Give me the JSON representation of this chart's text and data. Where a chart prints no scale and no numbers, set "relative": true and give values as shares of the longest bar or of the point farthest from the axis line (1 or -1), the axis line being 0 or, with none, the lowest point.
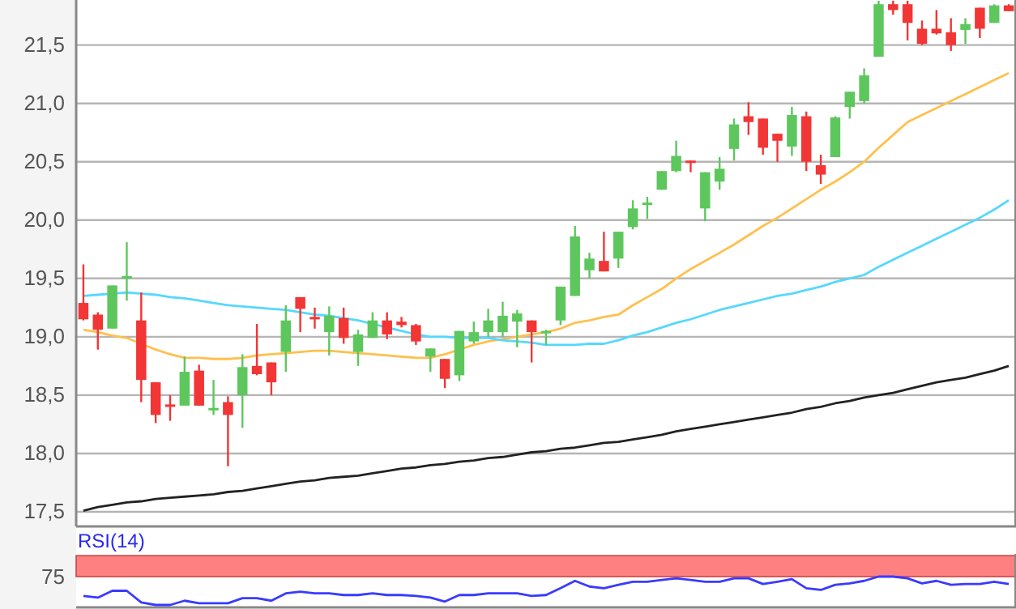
{
  "chart_data": [
    {
      "type": "candlestick",
      "categories": [
        null,
        null,
        null,
        null,
        null,
        null,
        null,
        null,
        null,
        null,
        null,
        null,
        null,
        null,
        null,
        null,
        null,
        null,
        null,
        null,
        null,
        null,
        null,
        null,
        null,
        null,
        null,
        null,
        null,
        null,
        null,
        null,
        null,
        null,
        null,
        null,
        null,
        null,
        null,
        null,
        null,
        null,
        null,
        null,
        null,
        null,
        null,
        null,
        null,
        null,
        null,
        null,
        null,
        null,
        null,
        null,
        null,
        null,
        null,
        null,
        null,
        null,
        null,
        null,
        null
      ],
      "ohlc": [
        [
          19.29,
          19.62,
          19.14,
          19.15
        ],
        [
          19.19,
          19.21,
          18.89,
          19.06
        ],
        [
          19.07,
          19.44,
          19.07,
          19.44
        ],
        [
          19.5,
          19.81,
          19.31,
          19.52
        ],
        [
          19.14,
          19.38,
          18.44,
          18.63
        ],
        [
          18.61,
          18.61,
          18.26,
          18.33
        ],
        [
          18.42,
          18.5,
          18.28,
          18.4
        ],
        [
          18.41,
          18.83,
          18.41,
          18.7
        ],
        [
          18.71,
          18.76,
          18.41,
          18.41
        ],
        [
          18.38,
          18.63,
          18.33,
          18.39
        ],
        [
          18.44,
          18.49,
          17.89,
          18.33
        ],
        [
          18.5,
          18.85,
          18.22,
          18.74
        ],
        [
          18.75,
          19.11,
          18.67,
          18.68
        ],
        [
          18.78,
          18.78,
          18.5,
          18.61
        ],
        [
          18.87,
          19.27,
          18.7,
          19.14
        ],
        [
          19.34,
          19.34,
          19.04,
          19.24
        ],
        [
          19.17,
          19.25,
          19.07,
          19.16
        ],
        [
          19.04,
          19.26,
          18.84,
          19.18
        ],
        [
          19.16,
          19.25,
          18.94,
          18.99
        ],
        [
          18.87,
          19.06,
          18.75,
          19.02
        ],
        [
          18.99,
          19.21,
          18.99,
          19.14
        ],
        [
          19.14,
          19.21,
          18.98,
          19.02
        ],
        [
          19.13,
          19.17,
          19.08,
          19.1
        ],
        [
          19.1,
          19.11,
          18.93,
          18.96
        ],
        [
          18.83,
          18.9,
          18.7,
          18.9
        ],
        [
          18.81,
          18.81,
          18.56,
          18.64
        ],
        [
          18.67,
          19.05,
          18.62,
          19.05
        ],
        [
          18.96,
          19.13,
          18.94,
          19.04
        ],
        [
          19.04,
          19.24,
          19.0,
          19.14
        ],
        [
          19.04,
          19.3,
          19.0,
          19.18
        ],
        [
          19.13,
          19.23,
          18.91,
          19.2
        ],
        [
          19.14,
          19.14,
          18.78,
          19.04
        ],
        [
          19.04,
          19.06,
          18.93,
          19.05
        ],
        [
          19.14,
          19.43,
          19.1,
          19.43
        ],
        [
          19.35,
          19.95,
          19.35,
          19.86
        ],
        [
          19.57,
          19.72,
          19.5,
          19.67
        ],
        [
          19.65,
          19.9,
          19.56,
          19.56
        ],
        [
          19.67,
          19.9,
          19.59,
          19.9
        ],
        [
          19.94,
          20.17,
          19.92,
          20.1
        ],
        [
          20.14,
          20.2,
          20.01,
          20.15
        ],
        [
          20.26,
          20.42,
          20.26,
          20.42
        ],
        [
          20.42,
          20.68,
          20.41,
          20.55
        ],
        [
          20.51,
          20.51,
          20.41,
          20.5
        ],
        [
          20.1,
          20.41,
          19.99,
          20.41
        ],
        [
          20.33,
          20.54,
          20.26,
          20.44
        ],
        [
          20.61,
          20.87,
          20.51,
          20.82
        ],
        [
          20.89,
          21.01,
          20.73,
          20.84
        ],
        [
          20.87,
          20.87,
          20.56,
          20.62
        ],
        [
          20.74,
          20.74,
          20.5,
          20.68
        ],
        [
          20.63,
          20.97,
          20.55,
          20.9
        ],
        [
          20.89,
          20.93,
          20.42,
          20.5
        ],
        [
          20.47,
          20.56,
          20.31,
          20.39
        ],
        [
          20.54,
          20.89,
          20.54,
          20.88
        ],
        [
          20.97,
          21.1,
          20.87,
          21.1
        ],
        [
          21.02,
          21.3,
          21.0,
          21.24
        ],
        [
          21.4,
          21.88,
          21.4,
          21.85
        ],
        [
          21.85,
          21.88,
          21.76,
          21.8
        ],
        [
          21.85,
          21.88,
          21.54,
          21.69
        ],
        [
          21.64,
          21.71,
          21.5,
          21.51
        ],
        [
          21.64,
          21.8,
          21.59,
          21.6
        ],
        [
          21.61,
          21.73,
          21.45,
          21.5
        ],
        [
          21.63,
          21.73,
          21.51,
          21.68
        ],
        [
          21.82,
          21.82,
          21.56,
          21.64
        ],
        [
          21.69,
          21.85,
          21.69,
          21.84
        ],
        [
          21.84,
          21.85,
          21.79,
          21.79
        ]
      ],
      "colors": [
        "#f23535",
        "#f23535",
        "#5dc75d",
        "#5dc75d",
        "#f23535",
        "#f23535",
        "#f23535",
        "#5dc75d",
        "#f23535",
        "#5dc75d",
        "#f23535",
        "#5dc75d",
        "#f23535",
        "#f23535",
        "#5dc75d",
        "#f23535",
        "#f23535",
        "#5dc75d",
        "#f23535",
        "#5dc75d",
        "#5dc75d",
        "#f23535",
        "#f23535",
        "#f23535",
        "#5dc75d",
        "#f23535",
        "#5dc75d",
        "#5dc75d",
        "#5dc75d",
        "#5dc75d",
        "#5dc75d",
        "#f23535",
        "#5dc75d",
        "#5dc75d",
        "#5dc75d",
        "#5dc75d",
        "#f23535",
        "#5dc75d",
        "#5dc75d",
        "#5dc75d",
        "#5dc75d",
        "#5dc75d",
        "#f23535",
        "#5dc75d",
        "#5dc75d",
        "#5dc75d",
        "#f23535",
        "#f23535",
        "#f23535",
        "#5dc75d",
        "#f23535",
        "#f23535",
        "#5dc75d",
        "#5dc75d",
        "#5dc75d",
        "#5dc75d",
        "#f23535",
        "#f23535",
        "#f23535",
        "#f23535",
        "#f23535",
        "#5dc75d",
        "#f23535",
        "#5dc75d",
        "#f23535"
      ],
      "series": [
        {
          "type": "line",
          "color": "#ffc04d",
          "values": [
            19.06,
            19.04,
            19.01,
            18.99,
            18.94,
            18.89,
            18.85,
            18.82,
            18.82,
            18.81,
            18.81,
            18.82,
            18.84,
            18.85,
            18.86,
            18.87,
            18.88,
            18.88,
            18.87,
            18.86,
            18.85,
            18.84,
            18.83,
            18.82,
            18.82,
            18.85,
            18.89,
            18.93,
            18.96,
            18.98,
            19.0,
            19.02,
            19.04,
            19.07,
            19.12,
            19.14,
            19.17,
            19.19,
            19.27,
            19.34,
            19.41,
            19.5,
            19.58,
            19.65,
            19.72,
            19.79,
            19.87,
            19.95,
            20.02,
            20.1,
            20.18,
            20.26,
            20.33,
            20.41,
            20.5,
            20.62,
            20.73,
            20.84,
            20.9,
            20.96,
            21.02,
            21.08,
            21.14,
            21.2,
            21.26
          ]
        },
        {
          "type": "line",
          "color": "#55d8ff",
          "values": [
            19.35,
            19.36,
            19.37,
            19.38,
            19.37,
            19.36,
            19.34,
            19.33,
            19.31,
            19.29,
            19.27,
            19.26,
            19.25,
            19.24,
            19.23,
            19.21,
            19.19,
            19.18,
            19.16,
            19.14,
            19.11,
            19.08,
            19.05,
            19.02,
            19.0,
            19.0,
            18.99,
            18.99,
            18.99,
            18.97,
            18.96,
            18.95,
            18.93,
            18.93,
            18.93,
            18.94,
            18.94,
            18.97,
            19.01,
            19.04,
            19.08,
            19.12,
            19.15,
            19.19,
            19.23,
            19.26,
            19.29,
            19.32,
            19.35,
            19.37,
            19.4,
            19.43,
            19.47,
            19.5,
            19.53,
            19.6,
            19.66,
            19.72,
            19.78,
            19.84,
            19.9,
            19.96,
            20.02,
            20.09,
            20.17
          ]
        },
        {
          "type": "line",
          "color": "#222222",
          "values": [
            17.51,
            17.54,
            17.56,
            17.58,
            17.59,
            17.61,
            17.62,
            17.63,
            17.64,
            17.65,
            17.67,
            17.68,
            17.7,
            17.72,
            17.74,
            17.76,
            17.77,
            17.79,
            17.8,
            17.81,
            17.83,
            17.85,
            17.87,
            17.88,
            17.9,
            17.91,
            17.93,
            17.94,
            17.96,
            17.97,
            17.99,
            18.01,
            18.02,
            18.04,
            18.05,
            18.07,
            18.09,
            18.1,
            18.12,
            18.14,
            18.16,
            18.19,
            18.21,
            18.23,
            18.25,
            18.27,
            18.29,
            18.31,
            18.33,
            18.35,
            18.38,
            18.4,
            18.43,
            18.45,
            18.48,
            18.5,
            18.52,
            18.55,
            18.58,
            18.61,
            18.63,
            18.65,
            18.68,
            18.71,
            18.75
          ]
        }
      ],
      "ylim": [
        17.375,
        21.9
      ],
      "yticks": [
        {
          "value": 17.5,
          "label": "17,5"
        },
        {
          "value": 18,
          "label": "18,0"
        },
        {
          "value": 18.5,
          "label": "18,5"
        },
        {
          "value": 19,
          "label": "19,0"
        },
        {
          "value": 19.5,
          "label": "19,5"
        },
        {
          "value": 20,
          "label": "20,0"
        },
        {
          "value": 20.5,
          "label": "20,5"
        },
        {
          "value": 21,
          "label": "21,0"
        },
        {
          "value": 21.5,
          "label": "21,5"
        }
      ],
      "grid": "y",
      "tick_labels": "y"
    },
    {
      "type": "line",
      "title": "RSI(14)",
      "categories": [
        null,
        null,
        null,
        null,
        null,
        null,
        null,
        null,
        null,
        null,
        null,
        null,
        null,
        null,
        null,
        null,
        null,
        null,
        null,
        null,
        null,
        null,
        null,
        null,
        null,
        null,
        null,
        null,
        null,
        null,
        null,
        null,
        null,
        null,
        null,
        null,
        null,
        null,
        null,
        null,
        null,
        null,
        null,
        null,
        null,
        null,
        null,
        null,
        null,
        null,
        null,
        null,
        null,
        null,
        null,
        null,
        null,
        null,
        null,
        null,
        null,
        null,
        null,
        null,
        null
      ],
      "series": [
        {
          "color": "#3a3aff",
          "values": [
            0.32,
            0.26,
            0.5,
            0.5,
            0.09,
            0,
            0,
            0.15,
            0.06,
            0.06,
            0.06,
            0.24,
            0.24,
            0.15,
            0.41,
            0.47,
            0.41,
            0.41,
            0.35,
            0.35,
            0.41,
            0.35,
            0.35,
            0.32,
            0.26,
            0.12,
            0.35,
            0.35,
            0.41,
            0.41,
            0.41,
            0.32,
            0.35,
            0.59,
            0.85,
            0.65,
            0.59,
            0.71,
            0.82,
            0.82,
            0.88,
            0.94,
            0.88,
            0.82,
            0.82,
            0.94,
            0.94,
            0.74,
            0.82,
            0.91,
            0.59,
            0.53,
            0.71,
            0.76,
            0.85,
            1,
            1,
            0.94,
            0.76,
            0.85,
            0.71,
            0.74,
            0.74,
            0.82,
            0.74
          ]
        }
      ],
      "relative": true,
      "annotations": [
        "75"
      ],
      "bands": [
        {
          "axis": "y",
          "from": 1,
          "to": 1.74,
          "color": "#ff8080"
        }
      ]
    }
  ]
}
